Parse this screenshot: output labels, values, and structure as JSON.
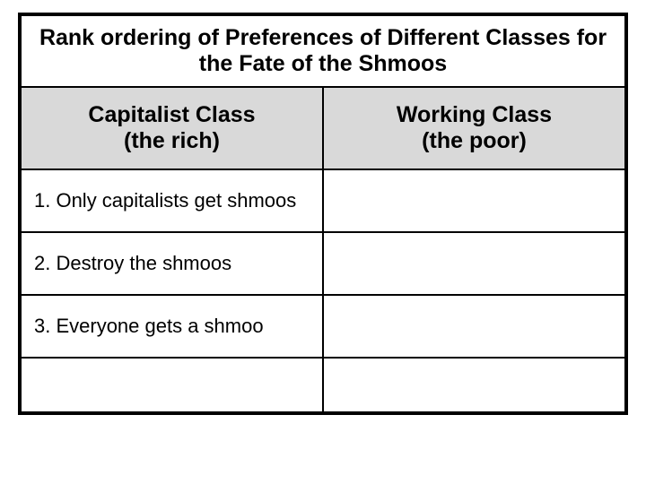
{
  "table": {
    "type": "table",
    "border_color": "#000000",
    "border_width_outer": 4,
    "border_width_inner": 2,
    "background_color": "#ffffff",
    "title": "Rank ordering of Preferences of Different Classes for the Fate of the Shmoos",
    "title_fontsize": 25,
    "header_fontsize": 25,
    "body_fontsize": 22,
    "header_bg": "#d9d9d9",
    "columns": [
      {
        "line1": "Capitalist Class",
        "line2": "(the rich)",
        "width_pct": 50
      },
      {
        "line1": "Working Class",
        "line2": "(the poor)",
        "width_pct": 50
      }
    ],
    "rows": [
      [
        "1. Only capitalists get shmoos",
        ""
      ],
      [
        "2. Destroy the shmoos",
        ""
      ],
      [
        "3. Everyone gets a shmoo",
        ""
      ],
      [
        "",
        ""
      ]
    ]
  }
}
